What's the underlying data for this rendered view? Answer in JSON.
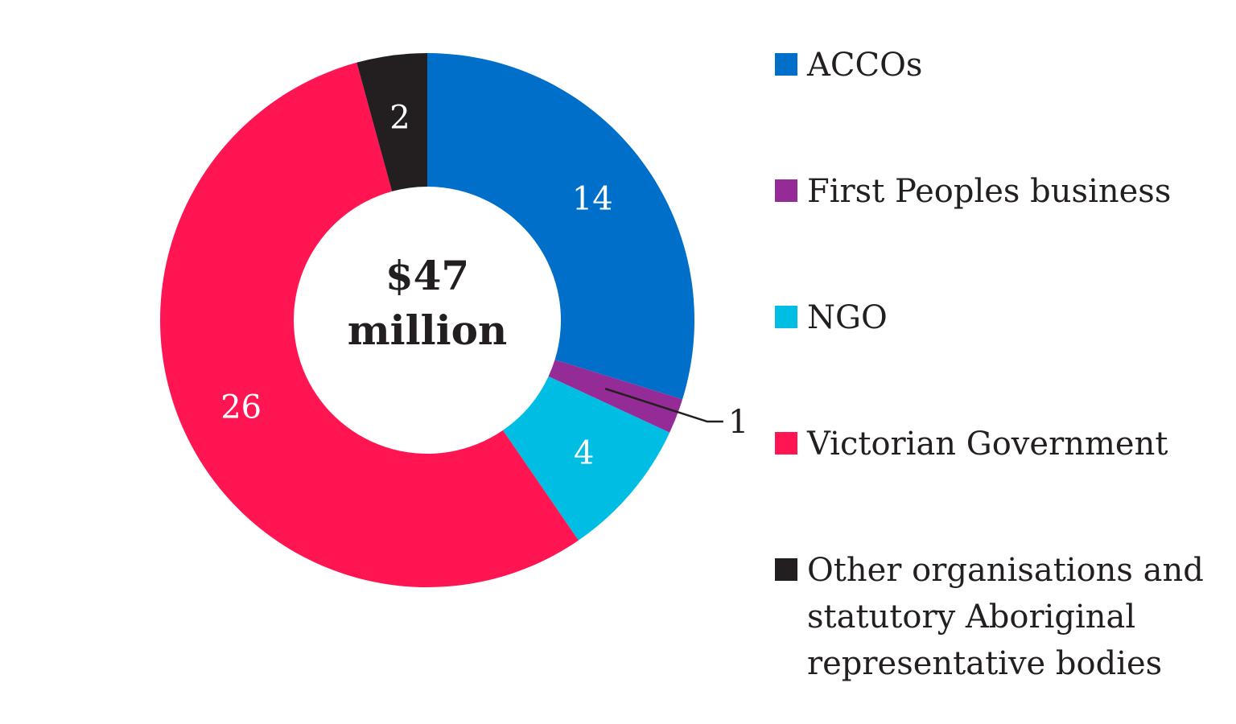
{
  "chart_data": {
    "type": "pie",
    "variant": "donut",
    "center_label": [
      "$47",
      "million"
    ],
    "slices": [
      {
        "label": "ACCOs",
        "value": 14,
        "color": "#006fc9",
        "label_text": "14"
      },
      {
        "label": "First Peoples business",
        "value": 1,
        "color": "#952b97",
        "label_text": "1"
      },
      {
        "label": "NGO",
        "value": 4,
        "color": "#00bde3",
        "label_text": "4"
      },
      {
        "label": "Victorian Government",
        "value": 26,
        "color": "#ff1551",
        "label_text": "26"
      },
      {
        "label": "Other organisations and statutory Aboriginal representative bodies",
        "value": 2,
        "color": "#231f20",
        "label_text": "2"
      }
    ],
    "legend": {
      "placement": "right",
      "items": [
        {
          "lines": [
            "ACCOs"
          ],
          "color": "#006fc9"
        },
        {
          "lines": [
            "First Peoples business"
          ],
          "color": "#952b97"
        },
        {
          "lines": [
            "NGO"
          ],
          "color": "#00bde3"
        },
        {
          "lines": [
            "Victorian Government"
          ],
          "color": "#ff1551"
        },
        {
          "lines": [
            "Other organisations and",
            "statutory Aboriginal",
            "representative bodies"
          ],
          "color": "#231f20"
        }
      ]
    }
  }
}
